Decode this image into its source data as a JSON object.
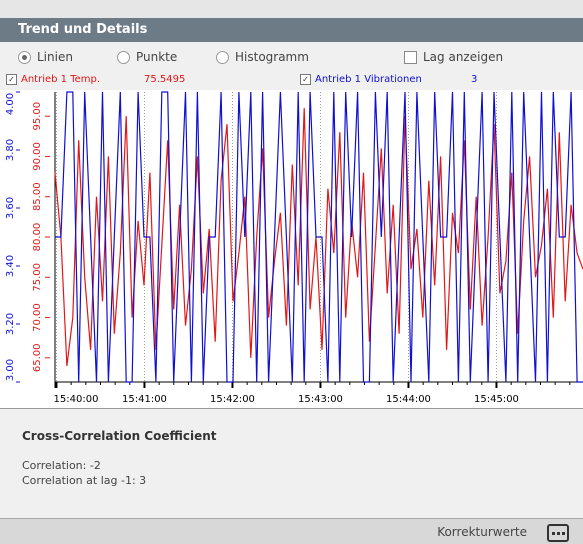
{
  "header": {
    "title": "Trend und Details"
  },
  "options": {
    "modes": [
      "Linien",
      "Punkte",
      "Histogramm"
    ],
    "selected": 0,
    "lag": "Lag anzeigen"
  },
  "chart_data": {
    "type": "line",
    "xlim": [
      "15:39:59",
      "15:45:59"
    ],
    "xticks": [
      "15:40:00",
      "15:41:00",
      "15:42:00",
      "15:43:00",
      "15:44:00",
      "15:45:00"
    ],
    "ylim": [
      62,
      98
    ],
    "yticks": [
      {
        "value": 65,
        "label": "65.00"
      },
      {
        "value": 70,
        "label": "70.00"
      },
      {
        "value": 75,
        "label": "75.00"
      },
      {
        "value": 80,
        "label": "80.00"
      },
      {
        "value": 85,
        "label": "85.00"
      },
      {
        "value": 90,
        "label": "90.00"
      },
      {
        "value": 95,
        "label": "95.00"
      }
    ],
    "y2lim": [
      3,
      4
    ],
    "y2ticks": [
      {
        "value": 3,
        "label": "3.00"
      },
      {
        "value": 3.2,
        "label": "3.20"
      },
      {
        "value": 3.4,
        "label": "3.40"
      },
      {
        "value": 3.6,
        "label": "3.60"
      },
      {
        "value": 3.8,
        "label": "3.80"
      },
      {
        "value": 4,
        "label": "4.00"
      }
    ],
    "grid": true,
    "series": [
      {
        "name": "Antrieb 1 Temp.",
        "current": 75.5495,
        "color": "#e01818",
        "values": [
          88,
          80,
          64,
          70,
          92,
          75,
          66,
          85,
          72,
          90,
          68,
          78,
          95,
          70,
          82,
          74,
          88,
          66,
          79,
          92,
          71,
          84,
          69,
          76,
          90,
          73,
          81,
          67,
          87,
          94,
          72,
          78,
          85,
          65,
          80,
          91,
          70,
          77,
          83,
          69,
          89,
          74,
          96,
          71,
          80,
          66,
          86,
          78,
          93,
          70,
          82,
          75,
          88,
          67,
          79,
          91,
          73,
          84,
          68,
          95,
          76,
          81,
          70,
          87,
          74,
          90,
          66,
          83,
          78,
          92,
          71,
          85,
          69,
          80,
          94,
          73,
          77,
          88,
          68,
          82,
          90,
          75,
          79,
          86,
          70,
          93,
          72,
          84,
          78,
          76
        ]
      },
      {
        "name": "Antrieb 1 Vibrationen",
        "current": 3,
        "color": "#1010d0",
        "axis": "y2",
        "values": [
          3.5,
          3.5,
          4,
          4,
          3,
          4,
          3.5,
          3,
          4,
          3,
          3.5,
          4,
          3,
          3,
          4,
          3.5,
          3.5,
          3,
          4,
          4,
          3,
          3.5,
          4,
          3,
          4,
          3,
          3.5,
          3.5,
          4,
          3,
          3,
          4,
          3.5,
          4,
          3,
          4,
          3,
          3.5,
          4,
          3.5,
          3,
          4,
          3,
          4,
          3.5,
          3.5,
          3,
          4,
          3,
          4,
          3.5,
          4,
          3,
          3,
          4,
          3.5,
          4,
          3,
          3.5,
          4,
          3,
          4,
          3.5,
          3,
          4,
          3.5,
          3.5,
          4,
          3,
          4,
          3,
          3.5,
          4,
          3,
          4,
          3.5,
          3,
          4,
          3,
          4,
          3.5,
          3,
          4,
          3,
          4,
          3.5,
          3.5,
          4,
          3,
          3
        ]
      }
    ]
  },
  "results": {
    "title": "Cross-Correlation Coefficient",
    "lines": [
      "Correlation: -2",
      "Correlation at lag -1: 3"
    ]
  },
  "footer": {
    "label": "Korrekturwerte"
  }
}
